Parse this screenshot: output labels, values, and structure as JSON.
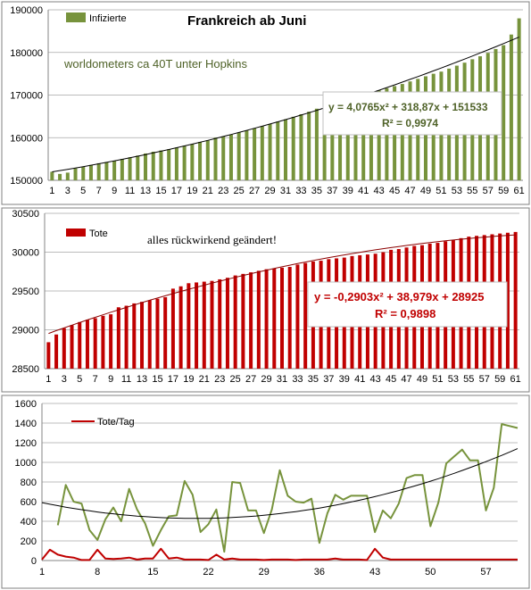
{
  "colors": {
    "infected": "#77933c",
    "deaths": "#c00000",
    "trend": "#000000",
    "deaths_trend": "#8b0000",
    "grid": "#a6a6a6",
    "frame": "#808080"
  },
  "chart_data": [
    {
      "type": "bar",
      "title": "Frankreich ab Juni",
      "legend": [
        "Infizierte"
      ],
      "annotations": [
        "worldometers ca 40T unter  Hopkins"
      ],
      "trendline_equation": "y = 4,0765x² + 318,87x + 151533",
      "r_squared": "R² = 0,9974",
      "x": [
        1,
        2,
        3,
        4,
        5,
        6,
        7,
        8,
        9,
        10,
        11,
        12,
        13,
        14,
        15,
        16,
        17,
        18,
        19,
        20,
        21,
        22,
        23,
        24,
        25,
        26,
        27,
        28,
        29,
        30,
        31,
        32,
        33,
        34,
        35,
        36,
        37,
        38,
        39,
        40,
        41,
        42,
        43,
        44,
        45,
        46,
        47,
        48,
        49,
        50,
        51,
        52,
        53,
        54,
        55,
        56,
        57,
        58,
        59,
        60,
        61
      ],
      "x_tick_labels": [
        "1",
        "3",
        "5",
        "7",
        "9",
        "11",
        "13",
        "15",
        "17",
        "19",
        "21",
        "23",
        "25",
        "27",
        "29",
        "31",
        "33",
        "35",
        "37",
        "39",
        "41",
        "43",
        "45",
        "47",
        "49",
        "51",
        "53",
        "55",
        "57",
        "59",
        "61"
      ],
      "series": [
        {
          "name": "Infizierte",
          "values": [
            152000,
            151500,
            151800,
            152800,
            153200,
            153600,
            154000,
            154300,
            154600,
            155000,
            155400,
            155800,
            156300,
            156700,
            157000,
            157300,
            157700,
            158100,
            158500,
            159000,
            159400,
            160000,
            160300,
            160700,
            161200,
            161700,
            162200,
            162700,
            163200,
            163800,
            164300,
            164900,
            165500,
            166100,
            166800,
            167500,
            168200,
            168700,
            169100,
            169600,
            170100,
            170600,
            171100,
            171600,
            172100,
            172600,
            173200,
            173800,
            174400,
            175000,
            175500,
            176200,
            176900,
            177600,
            178400,
            179100,
            179900,
            180800,
            181700,
            184200,
            188000
          ]
        }
      ],
      "ylim": [
        150000,
        190000
      ],
      "yticks": [
        150000,
        160000,
        170000,
        180000,
        190000
      ],
      "grid": true
    },
    {
      "type": "bar",
      "legend": [
        "Tote"
      ],
      "annotations": [
        "alles rückwirkend geändert!"
      ],
      "trendline_equation": "y = -0,2903x² + 38,979x + 28925",
      "r_squared": "R² = 0,9898",
      "x": [
        1,
        2,
        3,
        4,
        5,
        6,
        7,
        8,
        9,
        10,
        11,
        12,
        13,
        14,
        15,
        16,
        17,
        18,
        19,
        20,
        21,
        22,
        23,
        24,
        25,
        26,
        27,
        28,
        29,
        30,
        31,
        32,
        33,
        34,
        35,
        36,
        37,
        38,
        39,
        40,
        41,
        42,
        43,
        44,
        45,
        46,
        47,
        48,
        49,
        50,
        51,
        52,
        53,
        54,
        55,
        56,
        57,
        58,
        59,
        60,
        61
      ],
      "x_tick_labels": [
        "1",
        "3",
        "5",
        "7",
        "9",
        "11",
        "13",
        "15",
        "17",
        "19",
        "21",
        "23",
        "25",
        "27",
        "29",
        "31",
        "33",
        "35",
        "37",
        "39",
        "41",
        "43",
        "45",
        "47",
        "49",
        "51",
        "53",
        "55",
        "57",
        "59",
        "61"
      ],
      "series": [
        {
          "name": "Tote",
          "values": [
            28840,
            28940,
            29020,
            29060,
            29100,
            29130,
            29150,
            29180,
            29200,
            29290,
            29310,
            29340,
            29360,
            29380,
            29400,
            29420,
            29530,
            29560,
            29600,
            29610,
            29620,
            29630,
            29650,
            29670,
            29700,
            29720,
            29740,
            29760,
            29780,
            29790,
            29800,
            29810,
            29840,
            29860,
            29880,
            29890,
            29910,
            29920,
            29930,
            29950,
            29960,
            29970,
            29980,
            30000,
            30030,
            30040,
            30060,
            30080,
            30090,
            30110,
            30120,
            30140,
            30160,
            30180,
            30200,
            30210,
            30220,
            30230,
            30240,
            30250,
            30260
          ]
        }
      ],
      "ylim": [
        28500,
        30500
      ],
      "yticks": [
        28500,
        29000,
        29500,
        30000,
        30500
      ],
      "grid": true
    },
    {
      "type": "line",
      "legend": [
        "Tote/Tag"
      ],
      "x": [
        1,
        2,
        3,
        4,
        5,
        6,
        7,
        8,
        9,
        10,
        11,
        12,
        13,
        14,
        15,
        16,
        17,
        18,
        19,
        20,
        21,
        22,
        23,
        24,
        25,
        26,
        27,
        28,
        29,
        30,
        31,
        32,
        33,
        34,
        35,
        36,
        37,
        38,
        39,
        40,
        41,
        42,
        43,
        44,
        45,
        46,
        47,
        48,
        49,
        50,
        51,
        52,
        53,
        54,
        55,
        56,
        57,
        58,
        59,
        60,
        61
      ],
      "x_tick_labels": [
        "1",
        "8",
        "15",
        "22",
        "29",
        "36",
        "43",
        "50",
        "57"
      ],
      "series": [
        {
          "name": "Tote/Tag",
          "values": [
            10,
            110,
            60,
            40,
            30,
            5,
            5,
            110,
            20,
            15,
            20,
            30,
            10,
            20,
            20,
            120,
            20,
            30,
            10,
            10,
            10,
            5,
            60,
            10,
            20,
            10,
            10,
            10,
            5,
            10,
            10,
            10,
            5,
            10,
            10,
            10,
            10,
            20,
            10,
            10,
            10,
            5,
            120,
            30,
            10,
            10,
            10,
            10,
            10,
            10,
            10,
            10,
            10,
            10,
            10,
            10,
            10,
            10,
            10,
            10,
            10
          ]
        },
        {
          "values": [
            null,
            null,
            360,
            770,
            600,
            580,
            310,
            210,
            420,
            540,
            400,
            730,
            520,
            380,
            150,
            310,
            450,
            460,
            810,
            670,
            290,
            370,
            520,
            90,
            800,
            790,
            510,
            510,
            280,
            520,
            920,
            660,
            600,
            590,
            630,
            180,
            480,
            670,
            620,
            660,
            660,
            660,
            290,
            510,
            430,
            580,
            840,
            870,
            870,
            350,
            590,
            990,
            1060,
            1130,
            1020,
            1020,
            510,
            740,
            1390,
            1370,
            1350
          ]
        },
        {
          "values": [
            590,
            574,
            559,
            544,
            531,
            518,
            506,
            495,
            485,
            476,
            467,
            460,
            453,
            447,
            442,
            437,
            434,
            432,
            430,
            429,
            429,
            430,
            432,
            435,
            438,
            443,
            448,
            454,
            461,
            469,
            478,
            488,
            498,
            510,
            522,
            535,
            549,
            564,
            580,
            596,
            614,
            632,
            651,
            671,
            692,
            713,
            736,
            759,
            783,
            808,
            834,
            861,
            888,
            917,
            946,
            976,
            1007,
            1039,
            1071,
            1105,
            1140
          ]
        }
      ],
      "ylim": [
        0,
        1600
      ],
      "yticks": [
        0,
        200,
        400,
        600,
        800,
        1000,
        1200,
        1400,
        1600
      ],
      "grid": true
    }
  ]
}
